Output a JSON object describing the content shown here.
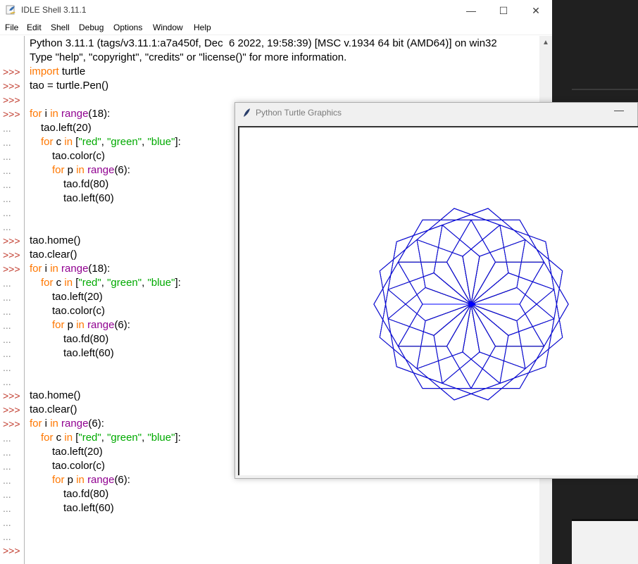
{
  "idle": {
    "title": "IDLE Shell 3.11.1",
    "controls": {
      "minimize": "—",
      "maximize": "☐",
      "close": "✕"
    },
    "menu": [
      "File",
      "Edit",
      "Shell",
      "Debug",
      "Options",
      "Window",
      "Help"
    ]
  },
  "shell": {
    "banner_line1": "Python 3.11.1 (tags/v3.11.1:a7a450f, Dec  6 2022, 19:58:39) [MSC v.1934 64 bit (AMD64)] on win32",
    "banner_line2": "Type \"help\", \"copyright\", \"credits\" or \"license()\" for more information.",
    "prompts": [
      ">>>",
      "...",
      ">>>",
      ">>>",
      ">>>"
    ],
    "lines": [
      {
        "p": "",
        "indent": 0,
        "tokens": []
      },
      {
        "p": "",
        "indent": 0,
        "tokens": []
      },
      {
        "p": ">>>",
        "indent": 0,
        "tokens": [
          [
            "kw",
            "import"
          ],
          [
            "t",
            " turtle"
          ]
        ]
      },
      {
        "p": ">>>",
        "indent": 0,
        "tokens": [
          [
            "t",
            "tao = turtle.Pen()"
          ]
        ]
      },
      {
        "p": ">>>",
        "indent": 0,
        "tokens": []
      },
      {
        "p": ">>>",
        "indent": 0,
        "tokens": [
          [
            "kw",
            "for"
          ],
          [
            "t",
            " i "
          ],
          [
            "kw",
            "in"
          ],
          [
            "t",
            " "
          ],
          [
            "bi",
            "range"
          ],
          [
            "t",
            "(18):"
          ]
        ]
      },
      {
        "p": "...",
        "indent": 1,
        "tokens": [
          [
            "t",
            "tao.left(20)"
          ]
        ]
      },
      {
        "p": "...",
        "indent": 1,
        "tokens": [
          [
            "kw",
            "for"
          ],
          [
            "t",
            " c "
          ],
          [
            "kw",
            "in"
          ],
          [
            "t",
            " ["
          ],
          [
            "str",
            "\"red\""
          ],
          [
            "t",
            ", "
          ],
          [
            "str",
            "\"green\""
          ],
          [
            "t",
            ", "
          ],
          [
            "str",
            "\"blue\""
          ],
          [
            "t",
            "]:"
          ]
        ]
      },
      {
        "p": "...",
        "indent": 2,
        "tokens": [
          [
            "t",
            "tao.color(c)"
          ]
        ]
      },
      {
        "p": "...",
        "indent": 2,
        "tokens": [
          [
            "kw",
            "for"
          ],
          [
            "t",
            " p "
          ],
          [
            "kw",
            "in"
          ],
          [
            "t",
            " "
          ],
          [
            "bi",
            "range"
          ],
          [
            "t",
            "(6):"
          ]
        ]
      },
      {
        "p": "...",
        "indent": 3,
        "tokens": [
          [
            "t",
            "tao.fd(80)"
          ]
        ]
      },
      {
        "p": "...",
        "indent": 3,
        "tokens": [
          [
            "t",
            "tao.left(60)"
          ]
        ]
      },
      {
        "p": "...",
        "indent": 0,
        "tokens": []
      },
      {
        "p": "...",
        "indent": 0,
        "tokens": []
      },
      {
        "p": ">>>",
        "indent": 0,
        "tokens": [
          [
            "t",
            "tao.home()"
          ]
        ]
      },
      {
        "p": ">>>",
        "indent": 0,
        "tokens": [
          [
            "t",
            "tao.clear()"
          ]
        ]
      },
      {
        "p": ">>>",
        "indent": 0,
        "tokens": [
          [
            "kw",
            "for"
          ],
          [
            "t",
            " i "
          ],
          [
            "kw",
            "in"
          ],
          [
            "t",
            " "
          ],
          [
            "bi",
            "range"
          ],
          [
            "t",
            "(18):"
          ]
        ]
      },
      {
        "p": "...",
        "indent": 1,
        "tokens": [
          [
            "kw",
            "for"
          ],
          [
            "t",
            " c "
          ],
          [
            "kw",
            "in"
          ],
          [
            "t",
            " ["
          ],
          [
            "str",
            "\"red\""
          ],
          [
            "t",
            ", "
          ],
          [
            "str",
            "\"green\""
          ],
          [
            "t",
            ", "
          ],
          [
            "str",
            "\"blue\""
          ],
          [
            "t",
            "]:"
          ]
        ]
      },
      {
        "p": "...",
        "indent": 2,
        "tokens": [
          [
            "t",
            "tao.left(20)"
          ]
        ]
      },
      {
        "p": "...",
        "indent": 2,
        "tokens": [
          [
            "t",
            "tao.color(c)"
          ]
        ]
      },
      {
        "p": "...",
        "indent": 2,
        "tokens": [
          [
            "kw",
            "for"
          ],
          [
            "t",
            " p "
          ],
          [
            "kw",
            "in"
          ],
          [
            "t",
            " "
          ],
          [
            "bi",
            "range"
          ],
          [
            "t",
            "(6):"
          ]
        ]
      },
      {
        "p": "...",
        "indent": 3,
        "tokens": [
          [
            "t",
            "tao.fd(80)"
          ]
        ]
      },
      {
        "p": "...",
        "indent": 3,
        "tokens": [
          [
            "t",
            "tao.left(60)"
          ]
        ]
      },
      {
        "p": "...",
        "indent": 0,
        "tokens": []
      },
      {
        "p": "...",
        "indent": 0,
        "tokens": []
      },
      {
        "p": ">>>",
        "indent": 0,
        "tokens": [
          [
            "t",
            "tao.home()"
          ]
        ]
      },
      {
        "p": ">>>",
        "indent": 0,
        "tokens": [
          [
            "t",
            "tao.clear()"
          ]
        ]
      },
      {
        "p": ">>>",
        "indent": 0,
        "tokens": [
          [
            "kw",
            "for"
          ],
          [
            "t",
            " i "
          ],
          [
            "kw",
            "in"
          ],
          [
            "t",
            " "
          ],
          [
            "bi",
            "range"
          ],
          [
            "t",
            "(6):"
          ]
        ]
      },
      {
        "p": "...",
        "indent": 1,
        "tokens": [
          [
            "kw",
            "for"
          ],
          [
            "t",
            " c "
          ],
          [
            "kw",
            "in"
          ],
          [
            "t",
            " ["
          ],
          [
            "str",
            "\"red\""
          ],
          [
            "t",
            ", "
          ],
          [
            "str",
            "\"green\""
          ],
          [
            "t",
            ", "
          ],
          [
            "str",
            "\"blue\""
          ],
          [
            "t",
            "]:"
          ]
        ]
      },
      {
        "p": "...",
        "indent": 2,
        "tokens": [
          [
            "t",
            "tao.left(20)"
          ]
        ]
      },
      {
        "p": "...",
        "indent": 2,
        "tokens": [
          [
            "t",
            "tao.color(c)"
          ]
        ]
      },
      {
        "p": "...",
        "indent": 2,
        "tokens": [
          [
            "kw",
            "for"
          ],
          [
            "t",
            " p "
          ],
          [
            "kw",
            "in"
          ],
          [
            "t",
            " "
          ],
          [
            "bi",
            "range"
          ],
          [
            "t",
            "(6):"
          ]
        ]
      },
      {
        "p": "...",
        "indent": 3,
        "tokens": [
          [
            "t",
            "tao.fd(80)"
          ]
        ]
      },
      {
        "p": "...",
        "indent": 3,
        "tokens": [
          [
            "t",
            "tao.left(60)"
          ]
        ]
      },
      {
        "p": "...",
        "indent": 0,
        "tokens": []
      },
      {
        "p": "...",
        "indent": 0,
        "tokens": []
      },
      {
        "p": ">>>",
        "indent": 0,
        "tokens": []
      }
    ]
  },
  "turtle_window": {
    "title": "Python Turtle Graphics",
    "minimize": "—",
    "drawing": {
      "iterations": 18,
      "turn_per_iteration": 20,
      "colors": [
        "red",
        "green",
        "blue"
      ],
      "hexagon_side": 80,
      "hexagon_turn": 60,
      "note_colors": {
        "red": "#ff0000",
        "green": "#008000",
        "blue": "#0000ff"
      }
    }
  }
}
